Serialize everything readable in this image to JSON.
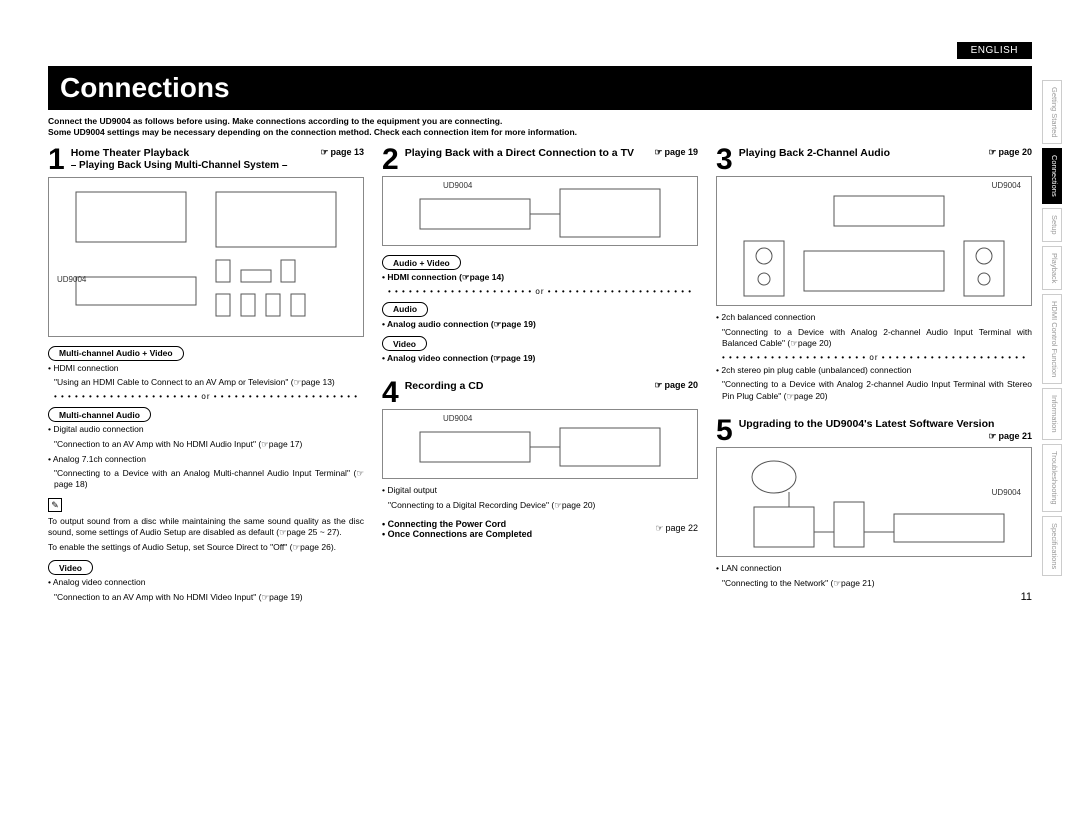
{
  "language_tab": "ENGLISH",
  "title": "Connections",
  "intro_line1": "Connect the UD9004 as follows before using. Make connections according to the equipment you are connecting.",
  "intro_line2": "Some UD9004 settings may be necessary depending on the connection method. Check each connection item for more information.",
  "dot_or": "• • • • • • • • • • • • • • • • • • • • •  or  • • • • • • • • • • • • • • • • • • • • •",
  "section1": {
    "num": "1",
    "title": "Home Theater Playback",
    "subtitle": "– Playing Back Using Multi-Channel System –",
    "pageref": "page 13",
    "diagram_label": "UD9004",
    "pill1": "Multi-channel Audio + Video",
    "b1": "• HDMI connection",
    "q1": "\"Using an HDMI Cable to Connect to an AV Amp or Television\" (☞page 13)",
    "pill2": "Multi-channel Audio",
    "b2": "• Digital audio connection",
    "q2": "\"Connection to an AV Amp with No HDMI Audio Input\" (☞page 17)",
    "b3": "• Analog 7.1ch connection",
    "q3": "\"Connecting to a Device with an Analog Multi-channel Audio Input Terminal\" (☞page 18)",
    "note1": "To output sound from a disc while maintaining the same sound quality as the disc sound, some settings of Audio Setup are disabled as default (☞page 25 ~ 27).",
    "note2": "To enable the settings of Audio Setup, set Source Direct to \"Off\" (☞page 26).",
    "pill3": "Video",
    "b4": "• Analog video connection",
    "q4": "\"Connection to an AV Amp with No HDMI Video Input\" (☞page 19)"
  },
  "section2": {
    "num": "2",
    "title": "Playing Back with a Direct Connection to a TV",
    "pageref": "page 19",
    "diagram_label": "UD9004",
    "pill1": "Audio + Video",
    "b1": "• HDMI connection (☞page 14)",
    "pill2": "Audio",
    "b2": "• Analog audio connection (☞page 19)",
    "pill3": "Video",
    "b3": "• Analog video connection (☞page 19)"
  },
  "section3": {
    "num": "3",
    "title": "Playing Back 2-Channel Audio",
    "pageref": "page 20",
    "diagram_label": "UD9004",
    "b1": "• 2ch balanced connection",
    "q1": "\"Connecting to a Device with Analog 2-channel Audio Input Terminal with Balanced Cable\" (☞page 20)",
    "b2": "• 2ch stereo pin plug cable (unbalanced) connection",
    "q2": "\"Connecting to a Device with Analog 2-channel Audio Input Terminal with Stereo Pin Plug Cable\" (☞page 20)"
  },
  "section4": {
    "num": "4",
    "title": "Recording a CD",
    "pageref": "page 20",
    "diagram_label": "UD9004",
    "b1": "• Digital output",
    "q1": "\"Connecting to a Digital Recording Device\" (☞page 20)"
  },
  "section5": {
    "num": "5",
    "title": "Upgrading to the UD9004's Latest Software Version",
    "pageref": "page 21",
    "diagram_label": "UD9004",
    "b1": "• LAN connection",
    "q1": "\"Connecting to the Network\" (☞page 21)"
  },
  "footer": {
    "l1": "• Connecting the Power Cord",
    "l2": "• Once Connections are Completed",
    "pageref": "page 22"
  },
  "side_tabs": [
    "Getting Started",
    "Connections",
    "Setup",
    "Playback",
    "HDMI Control Function",
    "Information",
    "Troubleshooting",
    "Specifications"
  ],
  "side_active_index": 1,
  "page_number": "11"
}
